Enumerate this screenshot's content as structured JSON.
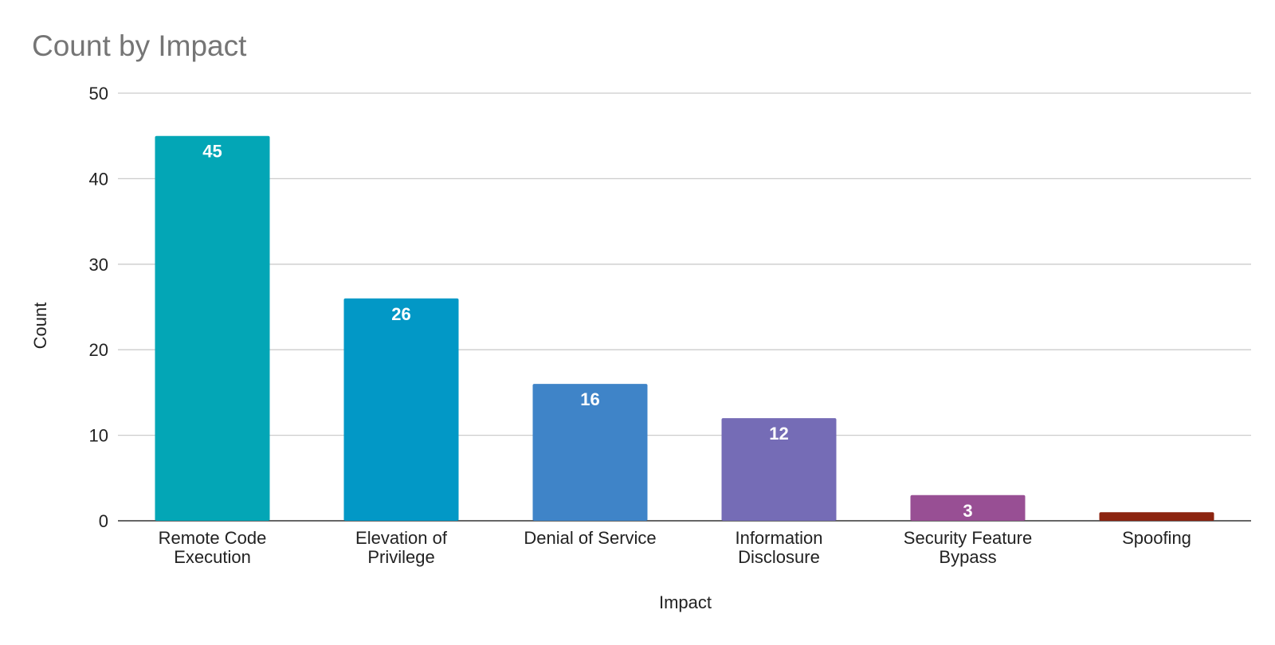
{
  "chart_data": {
    "type": "bar",
    "title": "Count by Impact",
    "xlabel": "Impact",
    "ylabel": "Count",
    "ylim": [
      0,
      50
    ],
    "yticks": [
      0,
      10,
      20,
      30,
      40,
      50
    ],
    "grid": true,
    "legend": "none",
    "categories": [
      "Remote Code Execution",
      "Elevation of Privilege",
      "Denial of Service",
      "Information Disclosure",
      "Security Feature Bypass",
      "Spoofing"
    ],
    "category_label_lines": [
      [
        "Remote Code",
        "Execution"
      ],
      [
        "Elevation of",
        "Privilege"
      ],
      [
        "Denial of Service"
      ],
      [
        "Information",
        "Disclosure"
      ],
      [
        "Security Feature",
        "Bypass"
      ],
      [
        "Spoofing"
      ]
    ],
    "values": [
      45,
      26,
      16,
      12,
      3,
      1
    ],
    "data_labels": [
      "45",
      "26",
      "16",
      "12",
      "3",
      ""
    ],
    "colors": [
      "#03a6b6",
      "#0298c6",
      "#3f84c8",
      "#756cb6",
      "#984f94",
      "#8c2410"
    ]
  }
}
